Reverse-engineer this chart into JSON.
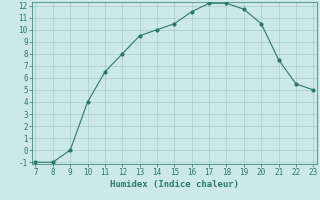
{
  "x": [
    7,
    8,
    9,
    10,
    11,
    12,
    13,
    14,
    15,
    16,
    17,
    18,
    19,
    20,
    21,
    22,
    23
  ],
  "y": [
    -1,
    -1,
    0,
    4,
    6.5,
    8,
    9.5,
    10,
    10.5,
    11.5,
    12.2,
    12.2,
    11.7,
    10.5,
    7.5,
    5.5,
    5
  ],
  "line_color": "#2a7a6a",
  "marker": "o",
  "marker_size": 2.0,
  "bg_color": "#cce8e8",
  "grid_color": "#aacccc",
  "xlabel": "Humidex (Indice chaleur)",
  "xlim": [
    7,
    23
  ],
  "ylim": [
    -1,
    12
  ],
  "xticks": [
    7,
    8,
    9,
    10,
    11,
    12,
    13,
    14,
    15,
    16,
    17,
    18,
    19,
    20,
    21,
    22,
    23
  ],
  "yticks": [
    -1,
    0,
    1,
    2,
    3,
    4,
    5,
    6,
    7,
    8,
    9,
    10,
    11,
    12
  ],
  "tick_color": "#2a7a6a",
  "label_fontsize": 6.5,
  "tick_fontsize": 5.5
}
